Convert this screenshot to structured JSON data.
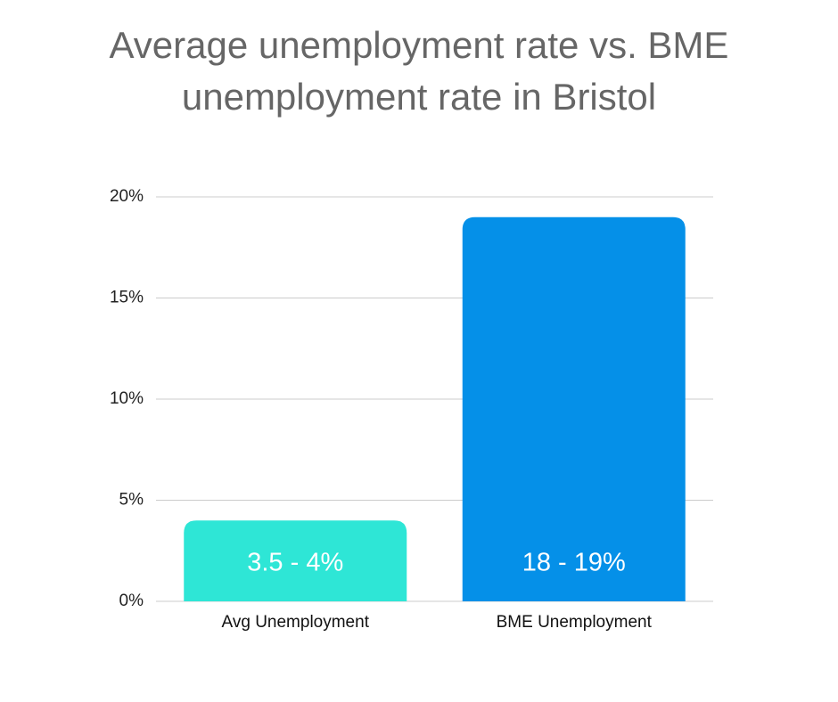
{
  "chart_data": {
    "type": "bar",
    "title": "Average unemployment rate vs. BME unemployment rate in Bristol",
    "categories": [
      "Avg Unemployment",
      "BME Unemployment"
    ],
    "values": [
      4,
      19
    ],
    "value_labels": [
      "3.5 - 4%",
      "18 - 19%"
    ],
    "colors": [
      "#2ee6d6",
      "#0590e8"
    ],
    "ylim": [
      0,
      20
    ],
    "yticks": [
      {
        "value": 0,
        "label": "0%"
      },
      {
        "value": 5,
        "label": "5%"
      },
      {
        "value": 10,
        "label": "10%"
      },
      {
        "value": 15,
        "label": "15%"
      },
      {
        "value": 20,
        "label": "20%"
      }
    ],
    "grid": true
  }
}
